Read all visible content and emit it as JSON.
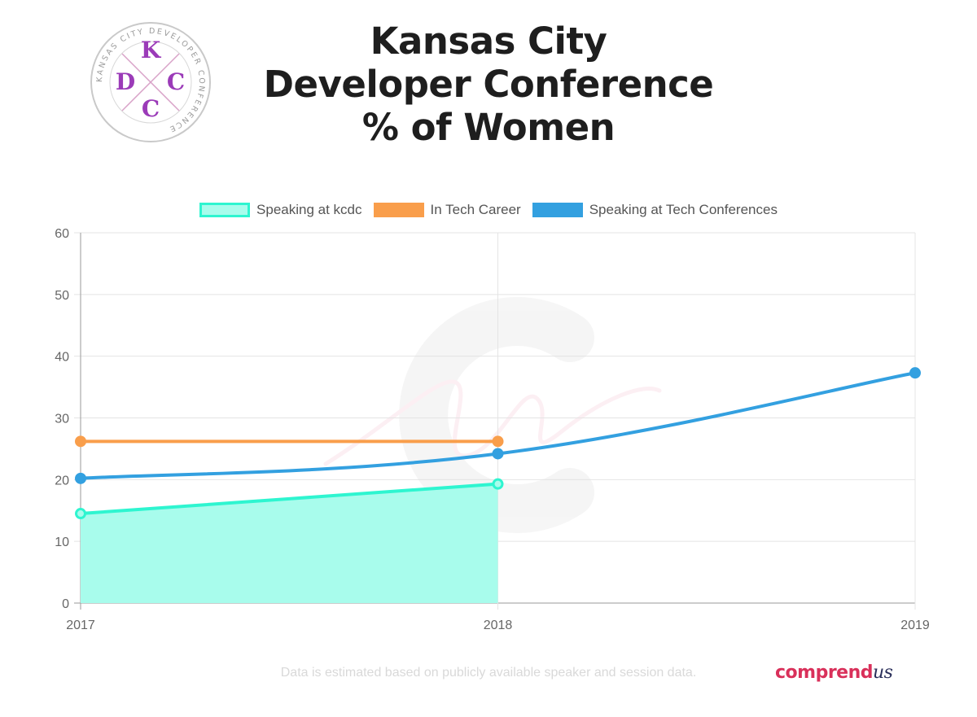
{
  "header": {
    "title_lines": [
      "Kansas City",
      "Developer Conference",
      "% of Women"
    ],
    "logo": {
      "letters": [
        "K",
        "D",
        "C",
        "C"
      ],
      "ring_text": "KANSAS CITY DEVELOPER CONFERENCE",
      "icon": "kcdc-logo"
    }
  },
  "chart_data": {
    "type": "line",
    "x": [
      "2017",
      "2018",
      "2019"
    ],
    "ylim": [
      0,
      60
    ],
    "yticks": [
      0,
      10,
      20,
      30,
      40,
      50,
      60
    ],
    "grid": true,
    "legend_position": "top-center",
    "series": [
      {
        "name": "Speaking at kcdc",
        "values": [
          14.5,
          19.3,
          null
        ],
        "color": "#2ef5d0",
        "fill": "#a8fcec",
        "filled": true
      },
      {
        "name": "In Tech Career",
        "values": [
          26.2,
          26.2,
          null
        ],
        "color": "#f99e4b",
        "filled": false
      },
      {
        "name": "Speaking at Tech Conferences",
        "values": [
          20.2,
          24.2,
          37.3
        ],
        "color": "#33a0e0",
        "filled": false
      }
    ]
  },
  "footer": {
    "note": "Data is estimated based on publicly available speaker and session data.",
    "brand": {
      "prefix": "comprend",
      "suffix": "us",
      "color": "#d9305a",
      "suffix_color": "#2a2f5a"
    }
  }
}
